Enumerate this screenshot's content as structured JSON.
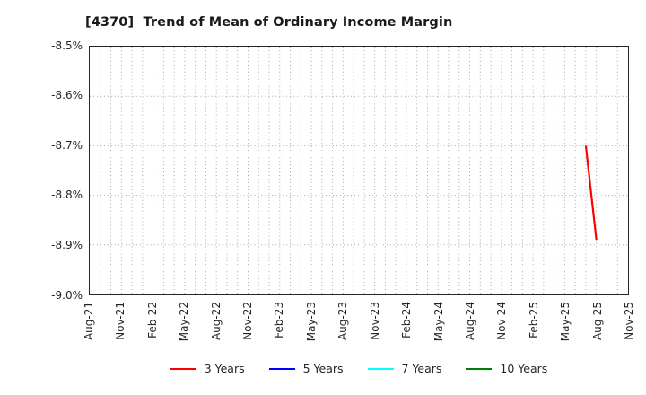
{
  "chart_data": {
    "type": "line",
    "title": "[4370]  Trend of Mean of Ordinary Income Margin",
    "background": "#ffffff",
    "axis_color": "#262626",
    "grid_color": "#a6a6a6",
    "grid_style": "dotted",
    "x_axis": {
      "tick_labels": [
        "Aug-21",
        "Nov-21",
        "Feb-22",
        "May-22",
        "Aug-22",
        "Nov-22",
        "Feb-23",
        "May-23",
        "Aug-23",
        "Nov-23",
        "Feb-24",
        "May-24",
        "Aug-24",
        "Nov-24",
        "Feb-25",
        "May-25",
        "Aug-25",
        "Nov-25"
      ],
      "months_per_tick": 3,
      "total_month_span": 51,
      "minor_grid": "monthly"
    },
    "y_axis": {
      "tick_labels": [
        "-8.5%",
        "-8.6%",
        "-8.7%",
        "-8.8%",
        "-8.9%",
        "-9.0%"
      ],
      "max": -8.5,
      "min": -9.0,
      "unit": "%"
    },
    "series": [
      {
        "name": "3 Years",
        "color": "#ff0000",
        "points": [
          {
            "x_label": "Jul-25",
            "month_offset": 47,
            "value": -8.7
          },
          {
            "x_label": "Aug-25",
            "month_offset": 48,
            "value": -8.89
          }
        ]
      },
      {
        "name": "5 Years",
        "color": "#0000ff",
        "points": []
      },
      {
        "name": "7 Years",
        "color": "#00ffff",
        "points": []
      },
      {
        "name": "10 Years",
        "color": "#008000",
        "points": []
      }
    ],
    "legend": {
      "position": "bottom",
      "entries": [
        "3 Years",
        "5 Years",
        "7 Years",
        "10 Years"
      ]
    }
  }
}
